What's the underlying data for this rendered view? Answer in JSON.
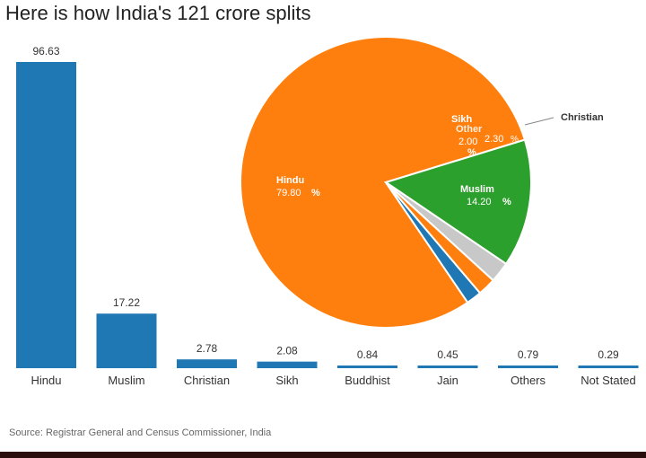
{
  "title": "Here is how India's 121 crore splits",
  "source": "Source: Registrar General and Census Commissioner, India",
  "colors": {
    "bar": "#1f77b4",
    "hindu": "#ff7f0e",
    "muslim": "#2ca02c",
    "christian": "#c8c8c8",
    "sikh": "#1f77b4",
    "other": "#ff7f0e"
  },
  "chart_data": [
    {
      "type": "bar",
      "categories": [
        "Hindu",
        "Muslim",
        "Christian",
        "Sikh",
        "Buddhist",
        "Jain",
        "Others",
        "Not Stated"
      ],
      "values": [
        96.63,
        17.22,
        2.78,
        2.08,
        0.84,
        0.45,
        0.79,
        0.29
      ],
      "value_labels": [
        "96.63",
        "17.22",
        "2.78",
        "2.08",
        "0.84",
        "0.45",
        "0.79",
        "0.29"
      ],
      "ylim": [
        0,
        96.63
      ],
      "grid": false
    },
    {
      "type": "pie",
      "slices": [
        {
          "label": "Hindu",
          "value": 79.8,
          "value_text": "79.80",
          "unit": "%"
        },
        {
          "label": "Muslim",
          "value": 14.2,
          "value_text": "14.20",
          "unit": "%"
        },
        {
          "label": "Christian",
          "value": 2.3,
          "value_text": "2.30",
          "unit": "%"
        },
        {
          "label": "Other",
          "value": 2.0,
          "value_text": "2.00",
          "unit": "%"
        },
        {
          "label": "Sikh",
          "value": 1.7,
          "value_text": "",
          "unit": ""
        }
      ]
    }
  ]
}
